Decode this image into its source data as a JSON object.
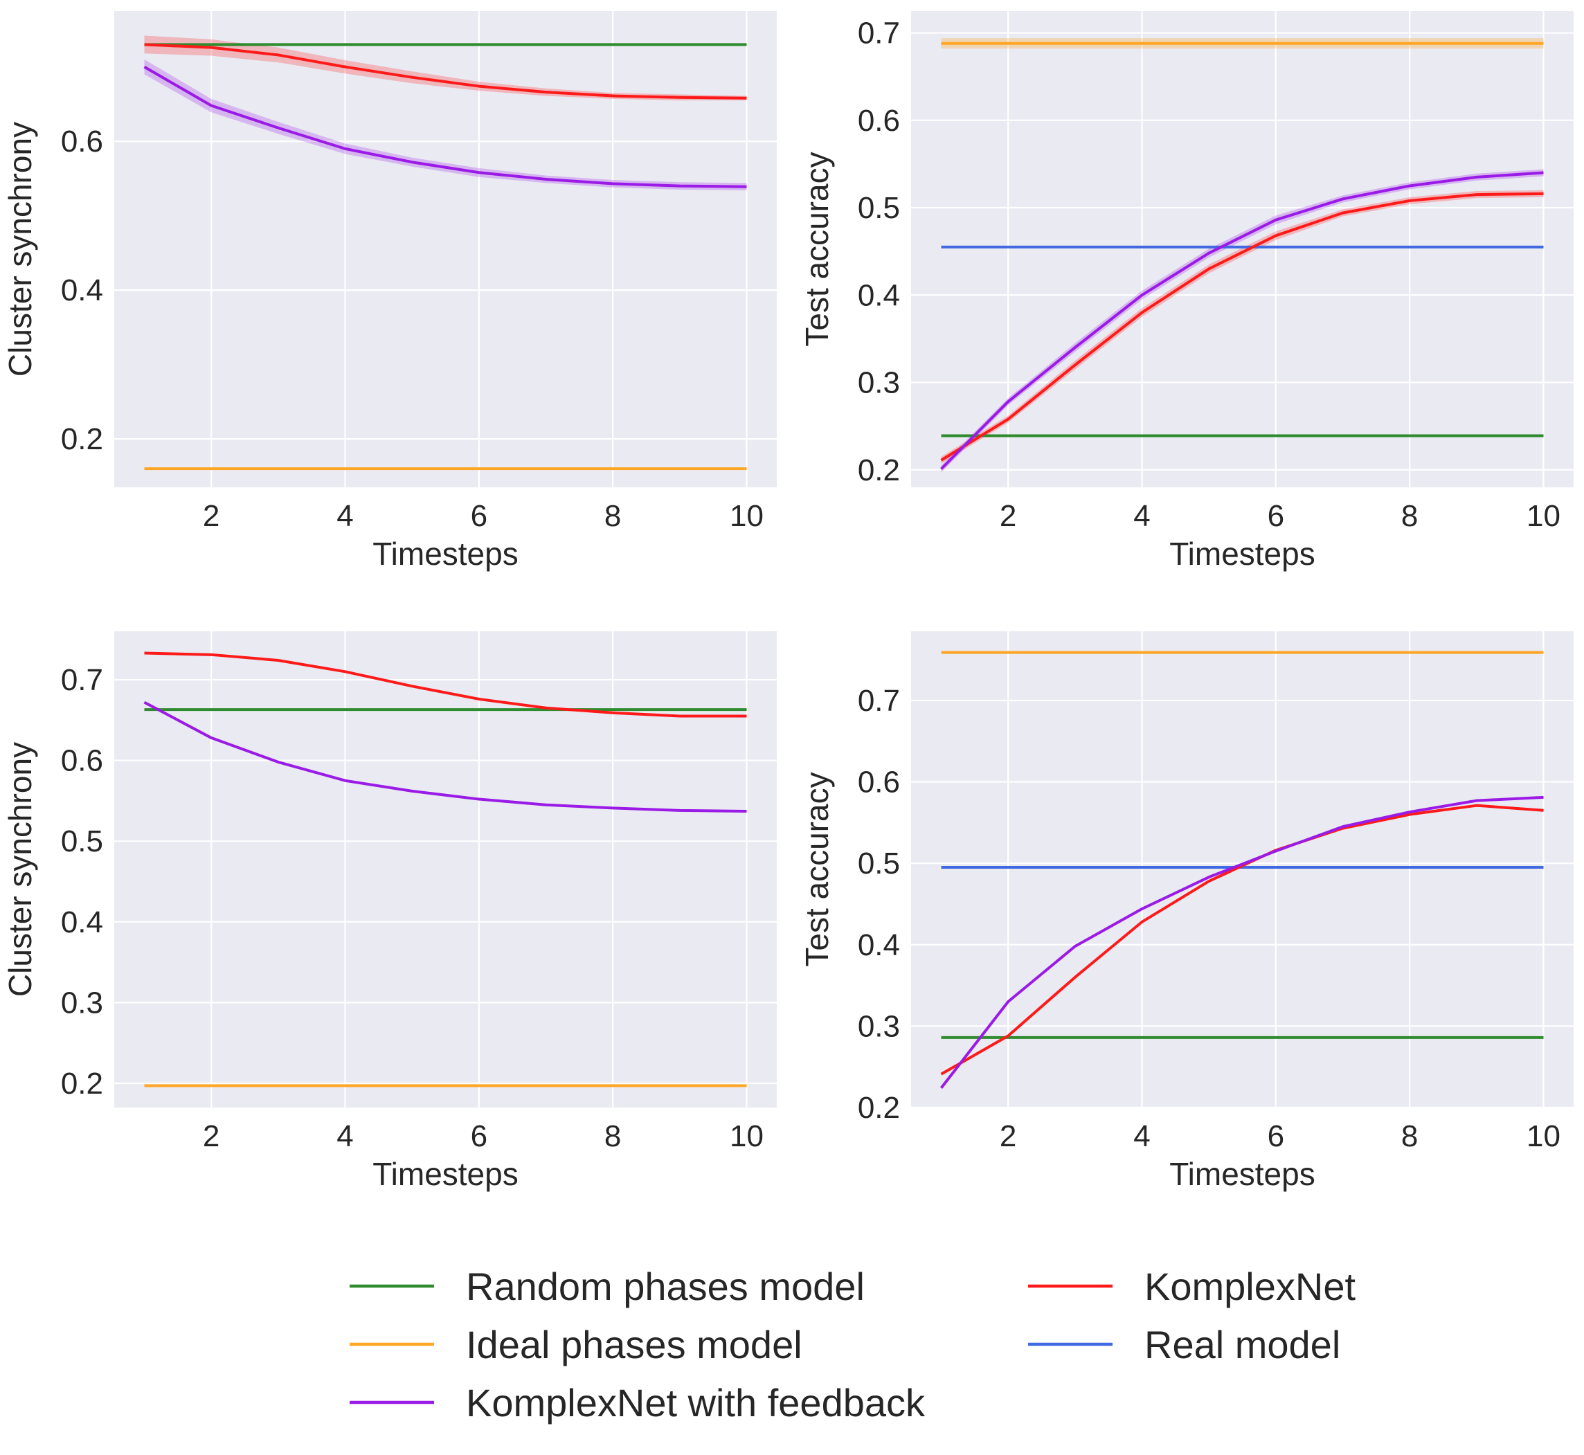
{
  "chart_data": [
    {
      "type": "line",
      "panel": "top-left",
      "xlabel": "Timesteps",
      "ylabel": "Cluster synchrony",
      "xlim": [
        0.55,
        10.45
      ],
      "ylim": [
        0.135,
        0.775
      ],
      "xticks": [
        2,
        4,
        6,
        8,
        10
      ],
      "yticks": [
        0.2,
        0.4,
        0.6
      ],
      "grid": true,
      "series": [
        {
          "name": "Random phases model",
          "color": "#2e8b2e",
          "x": [
            1,
            10
          ],
          "y": [
            0.73,
            0.73
          ]
        },
        {
          "name": "Ideal phases model",
          "color": "#ffa626",
          "x": [
            1,
            10
          ],
          "y": [
            0.16,
            0.16
          ]
        },
        {
          "name": "KomplexNet",
          "color": "#ff1a1a",
          "band_opacity": 0.25,
          "x": [
            1,
            2,
            3,
            4,
            5,
            6,
            7,
            8,
            9,
            10
          ],
          "y": [
            0.73,
            0.726,
            0.716,
            0.7,
            0.686,
            0.674,
            0.666,
            0.661,
            0.659,
            0.658
          ],
          "spread": [
            0.012,
            0.011,
            0.01,
            0.009,
            0.008,
            0.006,
            0.005,
            0.004,
            0.004,
            0.003
          ]
        },
        {
          "name": "KomplexNet with feedback",
          "color": "#9a1ae6",
          "band_opacity": 0.25,
          "x": [
            1,
            2,
            3,
            4,
            5,
            6,
            7,
            8,
            9,
            10
          ],
          "y": [
            0.7,
            0.648,
            0.618,
            0.59,
            0.572,
            0.558,
            0.549,
            0.543,
            0.54,
            0.539
          ],
          "spread": [
            0.01,
            0.009,
            0.008,
            0.007,
            0.006,
            0.006,
            0.005,
            0.005,
            0.005,
            0.005
          ]
        }
      ]
    },
    {
      "type": "line",
      "panel": "top-right",
      "xlabel": "Timesteps",
      "ylabel": "Test accuracy",
      "xlim": [
        0.55,
        10.45
      ],
      "ylim": [
        0.18,
        0.725
      ],
      "xticks": [
        2,
        4,
        6,
        8,
        10
      ],
      "yticks": [
        0.2,
        0.3,
        0.4,
        0.5,
        0.6,
        0.7
      ],
      "grid": true,
      "series": [
        {
          "name": "Ideal phases model",
          "color": "#ffa626",
          "band_opacity": 0.3,
          "x": [
            1,
            10
          ],
          "y": [
            0.688,
            0.688
          ],
          "spread": [
            0.006,
            0.006
          ]
        },
        {
          "name": "Real model",
          "color": "#4169e1",
          "x": [
            1,
            10
          ],
          "y": [
            0.455,
            0.455
          ]
        },
        {
          "name": "Random phases model",
          "color": "#2e8b2e",
          "x": [
            1,
            10
          ],
          "y": [
            0.239,
            0.239
          ]
        },
        {
          "name": "KomplexNet",
          "color": "#ff1a1a",
          "band_opacity": 0.25,
          "x": [
            1,
            2,
            3,
            4,
            5,
            6,
            7,
            8,
            9,
            10
          ],
          "y": [
            0.211,
            0.258,
            0.32,
            0.38,
            0.43,
            0.468,
            0.494,
            0.508,
            0.515,
            0.516
          ],
          "spread": [
            0.004,
            0.004,
            0.005,
            0.005,
            0.005,
            0.005,
            0.004,
            0.004,
            0.004,
            0.004
          ]
        },
        {
          "name": "KomplexNet with feedback",
          "color": "#9a1ae6",
          "band_opacity": 0.25,
          "x": [
            1,
            2,
            3,
            4,
            5,
            6,
            7,
            8,
            9,
            10
          ],
          "y": [
            0.201,
            0.278,
            0.34,
            0.4,
            0.448,
            0.486,
            0.51,
            0.525,
            0.535,
            0.54
          ],
          "spread": [
            0.004,
            0.004,
            0.005,
            0.005,
            0.005,
            0.005,
            0.004,
            0.004,
            0.004,
            0.004
          ]
        }
      ]
    },
    {
      "type": "line",
      "panel": "bottom-left",
      "xlabel": "Timesteps",
      "ylabel": "Cluster synchrony",
      "xlim": [
        0.55,
        10.45
      ],
      "ylim": [
        0.17,
        0.76
      ],
      "xticks": [
        2,
        4,
        6,
        8,
        10
      ],
      "yticks": [
        0.2,
        0.3,
        0.4,
        0.5,
        0.6,
        0.7
      ],
      "grid": true,
      "series": [
        {
          "name": "Random phases model",
          "color": "#2e8b2e",
          "x": [
            1,
            10
          ],
          "y": [
            0.663,
            0.663
          ]
        },
        {
          "name": "Ideal phases model",
          "color": "#ffa626",
          "x": [
            1,
            10
          ],
          "y": [
            0.197,
            0.197
          ]
        },
        {
          "name": "KomplexNet",
          "color": "#ff1a1a",
          "x": [
            1,
            2,
            3,
            4,
            5,
            6,
            7,
            8,
            9,
            10
          ],
          "y": [
            0.733,
            0.731,
            0.724,
            0.71,
            0.692,
            0.676,
            0.665,
            0.659,
            0.655,
            0.655
          ]
        },
        {
          "name": "KomplexNet with feedback",
          "color": "#9a1ae6",
          "x": [
            1,
            2,
            3,
            4,
            5,
            6,
            7,
            8,
            9,
            10
          ],
          "y": [
            0.672,
            0.628,
            0.598,
            0.575,
            0.562,
            0.552,
            0.545,
            0.541,
            0.538,
            0.537
          ]
        }
      ]
    },
    {
      "type": "line",
      "panel": "bottom-right",
      "xlabel": "Timesteps",
      "ylabel": "Test accuracy",
      "xlim": [
        0.55,
        10.45
      ],
      "ylim": [
        0.2,
        0.785
      ],
      "xticks": [
        2,
        4,
        6,
        8,
        10
      ],
      "yticks": [
        0.2,
        0.3,
        0.4,
        0.5,
        0.6,
        0.7
      ],
      "grid": true,
      "series": [
        {
          "name": "Ideal phases model",
          "color": "#ffa626",
          "x": [
            1,
            10
          ],
          "y": [
            0.759,
            0.759
          ]
        },
        {
          "name": "Real model",
          "color": "#4169e1",
          "x": [
            1,
            10
          ],
          "y": [
            0.495,
            0.495
          ]
        },
        {
          "name": "Random phases model",
          "color": "#2e8b2e",
          "x": [
            1,
            10
          ],
          "y": [
            0.286,
            0.286
          ]
        },
        {
          "name": "KomplexNet",
          "color": "#ff1a1a",
          "x": [
            1,
            2,
            3,
            4,
            5,
            6,
            7,
            8,
            9,
            10
          ],
          "y": [
            0.241,
            0.288,
            0.36,
            0.428,
            0.478,
            0.516,
            0.543,
            0.56,
            0.571,
            0.565
          ]
        },
        {
          "name": "KomplexNet with feedback",
          "color": "#9a1ae6",
          "x": [
            1,
            2,
            3,
            4,
            5,
            6,
            7,
            8,
            9,
            10
          ],
          "y": [
            0.224,
            0.33,
            0.398,
            0.444,
            0.483,
            0.515,
            0.545,
            0.563,
            0.577,
            0.581
          ]
        }
      ]
    }
  ],
  "legend": {
    "placement": "bottom-center",
    "columns": [
      [
        {
          "label": "Random phases model",
          "color": "#2e8b2e"
        },
        {
          "label": "Ideal phases model",
          "color": "#ffa626"
        },
        {
          "label": "KomplexNet with feedback",
          "color": "#9a1ae6"
        }
      ],
      [
        {
          "label": "KomplexNet",
          "color": "#ff1a1a"
        },
        {
          "label": "Real model",
          "color": "#4169e1"
        }
      ]
    ]
  },
  "style": {
    "plot_background": "#eaeaf2",
    "grid_color": "#ffffff",
    "page_background": "#ffffff"
  }
}
